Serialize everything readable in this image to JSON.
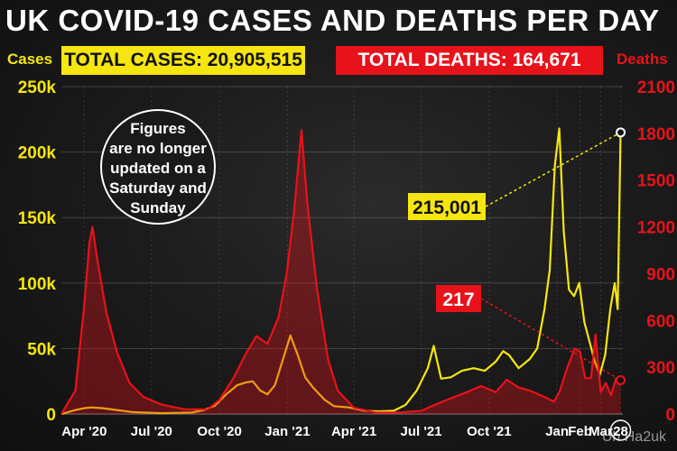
{
  "chart_data": {
    "type": "line",
    "title": "UK COVID-19 CASES AND DEATHS PER DAY",
    "total_cases_label": "TOTAL CASES: 20,905,515",
    "total_deaths_label": "TOTAL DEATHS: 164,671",
    "ylabel_left": "Cases",
    "ylabel_right": "Deaths",
    "ylim_left": [
      0,
      250000
    ],
    "ylim_right": [
      0,
      2100
    ],
    "yticks_left": [
      {
        "value": 0,
        "label": "0"
      },
      {
        "value": 50000,
        "label": "50k"
      },
      {
        "value": 100000,
        "label": "100k"
      },
      {
        "value": 150000,
        "label": "150k"
      },
      {
        "value": 200000,
        "label": "200k"
      },
      {
        "value": 250000,
        "label": "250k"
      }
    ],
    "yticks_right": [
      {
        "value": 0,
        "label": "0"
      },
      {
        "value": 300,
        "label": "300"
      },
      {
        "value": 600,
        "label": "600"
      },
      {
        "value": 900,
        "label": "900"
      },
      {
        "value": 1200,
        "label": "1200"
      },
      {
        "value": 1500,
        "label": "1500"
      },
      {
        "value": 1800,
        "label": "1800"
      },
      {
        "value": 2100,
        "label": "2100"
      }
    ],
    "xlim": [
      "2020-03-01",
      "2022-03-31"
    ],
    "xticks": [
      {
        "date": "2020-04-01",
        "label": "Apr '20"
      },
      {
        "date": "2020-07-01",
        "label": "Jul '20"
      },
      {
        "date": "2020-10-01",
        "label": "Oct '20"
      },
      {
        "date": "2021-01-01",
        "label": "Jan '21"
      },
      {
        "date": "2021-04-01",
        "label": "Apr '21"
      },
      {
        "date": "2021-07-01",
        "label": "Jul '21"
      },
      {
        "date": "2021-10-01",
        "label": "Oct '21"
      },
      {
        "date": "2022-01-01",
        "label": "Jan"
      },
      {
        "date": "2022-02-01",
        "label": "Feb"
      },
      {
        "date": "2022-03-01",
        "label": "Mar"
      },
      {
        "date": "2022-03-28",
        "label": "28"
      }
    ],
    "grid": true,
    "series": [
      {
        "name": "Cases",
        "axis": "left",
        "color": "#f6e60f",
        "points": [
          [
            "2020-03-01",
            0
          ],
          [
            "2020-03-20",
            3000
          ],
          [
            "2020-04-01",
            4500
          ],
          [
            "2020-04-10",
            5000
          ],
          [
            "2020-04-25",
            4500
          ],
          [
            "2020-05-15",
            3000
          ],
          [
            "2020-06-05",
            1500
          ],
          [
            "2020-06-25",
            1000
          ],
          [
            "2020-07-15",
            600
          ],
          [
            "2020-08-05",
            900
          ],
          [
            "2020-08-25",
            1200
          ],
          [
            "2020-09-10",
            3000
          ],
          [
            "2020-09-25",
            6500
          ],
          [
            "2020-10-10",
            15000
          ],
          [
            "2020-10-25",
            22000
          ],
          [
            "2020-11-05",
            24000
          ],
          [
            "2020-11-15",
            25000
          ],
          [
            "2020-11-25",
            18000
          ],
          [
            "2020-12-05",
            15000
          ],
          [
            "2020-12-15",
            22000
          ],
          [
            "2020-12-25",
            40000
          ],
          [
            "2021-01-05",
            60000
          ],
          [
            "2021-01-15",
            45000
          ],
          [
            "2021-01-25",
            28000
          ],
          [
            "2021-02-05",
            20000
          ],
          [
            "2021-02-20",
            11000
          ],
          [
            "2021-03-05",
            6000
          ],
          [
            "2021-03-25",
            5000
          ],
          [
            "2021-04-15",
            2500
          ],
          [
            "2021-05-05",
            2000
          ],
          [
            "2021-05-25",
            2500
          ],
          [
            "2021-06-10",
            7000
          ],
          [
            "2021-06-25",
            18000
          ],
          [
            "2021-07-10",
            35000
          ],
          [
            "2021-07-18",
            52000
          ],
          [
            "2021-07-28",
            27000
          ],
          [
            "2021-08-10",
            28000
          ],
          [
            "2021-08-25",
            33000
          ],
          [
            "2021-09-10",
            35000
          ],
          [
            "2021-09-25",
            33000
          ],
          [
            "2021-10-10",
            40000
          ],
          [
            "2021-10-20",
            48000
          ],
          [
            "2021-10-28",
            45000
          ],
          [
            "2021-11-10",
            35000
          ],
          [
            "2021-11-25",
            42000
          ],
          [
            "2021-12-05",
            50000
          ],
          [
            "2021-12-15",
            80000
          ],
          [
            "2021-12-22",
            110000
          ],
          [
            "2021-12-29",
            190000
          ],
          [
            "2022-01-04",
            218000
          ],
          [
            "2022-01-10",
            140000
          ],
          [
            "2022-01-17",
            95000
          ],
          [
            "2022-01-24",
            90000
          ],
          [
            "2022-01-31",
            100000
          ],
          [
            "2022-02-07",
            70000
          ],
          [
            "2022-02-14",
            55000
          ],
          [
            "2022-02-21",
            40000
          ],
          [
            "2022-02-28",
            30000
          ],
          [
            "2022-03-07",
            45000
          ],
          [
            "2022-03-14",
            80000
          ],
          [
            "2022-03-20",
            100000
          ],
          [
            "2022-03-24",
            80000
          ],
          [
            "2022-03-28",
            215001
          ]
        ]
      },
      {
        "name": "Deaths",
        "axis": "right",
        "color": "#e8121a",
        "points": [
          [
            "2020-03-01",
            0
          ],
          [
            "2020-03-20",
            150
          ],
          [
            "2020-04-01",
            700
          ],
          [
            "2020-04-08",
            1100
          ],
          [
            "2020-04-12",
            1200
          ],
          [
            "2020-04-20",
            950
          ],
          [
            "2020-05-01",
            650
          ],
          [
            "2020-05-15",
            400
          ],
          [
            "2020-06-01",
            200
          ],
          [
            "2020-06-20",
            110
          ],
          [
            "2020-07-15",
            60
          ],
          [
            "2020-08-15",
            30
          ],
          [
            "2020-09-15",
            30
          ],
          [
            "2020-10-01",
            90
          ],
          [
            "2020-10-20",
            230
          ],
          [
            "2020-11-05",
            380
          ],
          [
            "2020-11-20",
            500
          ],
          [
            "2020-12-05",
            450
          ],
          [
            "2020-12-20",
            620
          ],
          [
            "2020-12-31",
            900
          ],
          [
            "2021-01-10",
            1300
          ],
          [
            "2021-01-20",
            1820
          ],
          [
            "2021-01-28",
            1350
          ],
          [
            "2021-02-10",
            800
          ],
          [
            "2021-02-25",
            350
          ],
          [
            "2021-03-10",
            150
          ],
          [
            "2021-04-01",
            40
          ],
          [
            "2021-05-01",
            10
          ],
          [
            "2021-06-01",
            10
          ],
          [
            "2021-07-01",
            20
          ],
          [
            "2021-07-20",
            60
          ],
          [
            "2021-08-10",
            100
          ],
          [
            "2021-09-01",
            140
          ],
          [
            "2021-09-20",
            180
          ],
          [
            "2021-10-10",
            140
          ],
          [
            "2021-10-25",
            220
          ],
          [
            "2021-11-10",
            170
          ],
          [
            "2021-11-25",
            150
          ],
          [
            "2021-12-10",
            120
          ],
          [
            "2021-12-28",
            80
          ],
          [
            "2022-01-05",
            150
          ],
          [
            "2022-01-15",
            300
          ],
          [
            "2022-01-25",
            420
          ],
          [
            "2022-02-01",
            400
          ],
          [
            "2022-02-08",
            230
          ],
          [
            "2022-02-16",
            230
          ],
          [
            "2022-02-22",
            510
          ],
          [
            "2022-03-01",
            140
          ],
          [
            "2022-03-08",
            200
          ],
          [
            "2022-03-15",
            120
          ],
          [
            "2022-03-22",
            230
          ],
          [
            "2022-03-28",
            217
          ]
        ]
      }
    ],
    "annotations": {
      "note": {
        "lines": [
          "Figures",
          "are no longer",
          "updated on a",
          "Saturday and",
          "Sunday"
        ]
      },
      "cases_callout": {
        "label": "215,001",
        "date": "2022-03-28",
        "value": 215001,
        "axis": "left"
      },
      "deaths_callout": {
        "label": "217",
        "date": "2022-03-28",
        "value": 217,
        "axis": "right"
      }
    }
  },
  "watermark": "Uh Ha2uk"
}
